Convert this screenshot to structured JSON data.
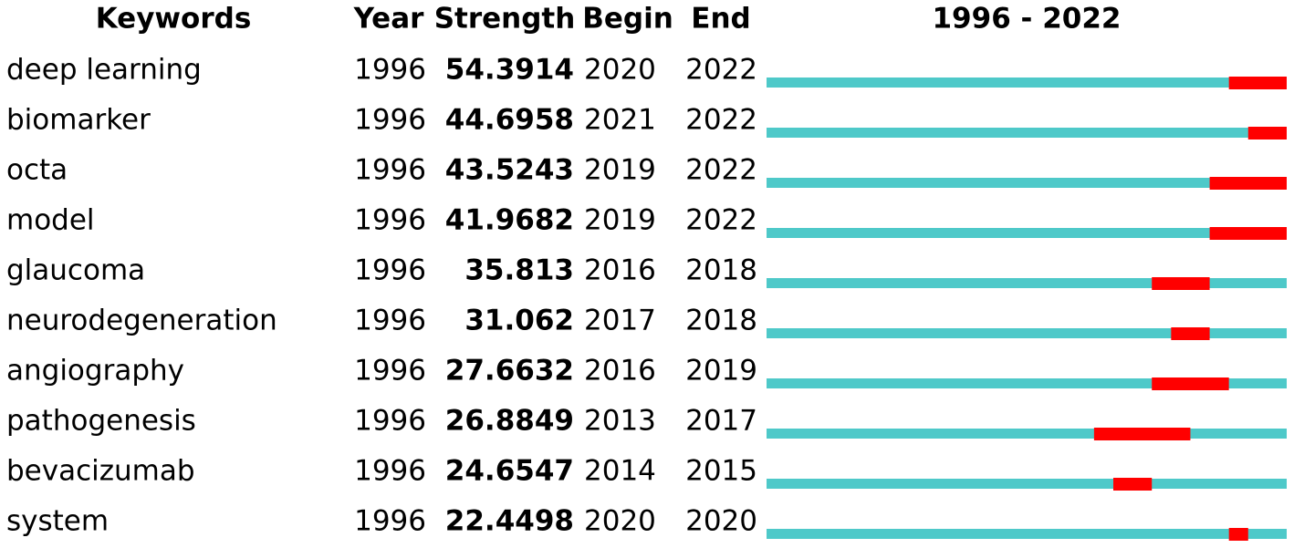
{
  "header": {
    "keywords": "Keywords",
    "year": "Year",
    "strength": "Strength",
    "begin": "Begin",
    "end": "End",
    "range": "1996 - 2022"
  },
  "rows": [
    {
      "keyword": "deep learning",
      "year": 1996,
      "strength": 54.3914,
      "begin": 2020,
      "end": 2022
    },
    {
      "keyword": "biomarker",
      "year": 1996,
      "strength": 44.6958,
      "begin": 2021,
      "end": 2022
    },
    {
      "keyword": "octa",
      "year": 1996,
      "strength": 43.5243,
      "begin": 2019,
      "end": 2022
    },
    {
      "keyword": "model",
      "year": 1996,
      "strength": 41.9682,
      "begin": 2019,
      "end": 2022
    },
    {
      "keyword": "glaucoma",
      "year": 1996,
      "strength": 35.813,
      "begin": 2016,
      "end": 2018
    },
    {
      "keyword": "neurodegeneration",
      "year": 1996,
      "strength": 31.062,
      "begin": 2017,
      "end": 2018
    },
    {
      "keyword": "angiography",
      "year": 1996,
      "strength": 27.6632,
      "begin": 2016,
      "end": 2019
    },
    {
      "keyword": "pathogenesis",
      "year": 1996,
      "strength": 26.8849,
      "begin": 2013,
      "end": 2017
    },
    {
      "keyword": "bevacizumab",
      "year": 1996,
      "strength": 24.6547,
      "begin": 2014,
      "end": 2015
    },
    {
      "keyword": "system",
      "year": 1996,
      "strength": 22.4498,
      "begin": 2020,
      "end": 2020
    }
  ],
  "colors": {
    "base": "#4ec9c9",
    "burst": "#ff0000"
  }
}
